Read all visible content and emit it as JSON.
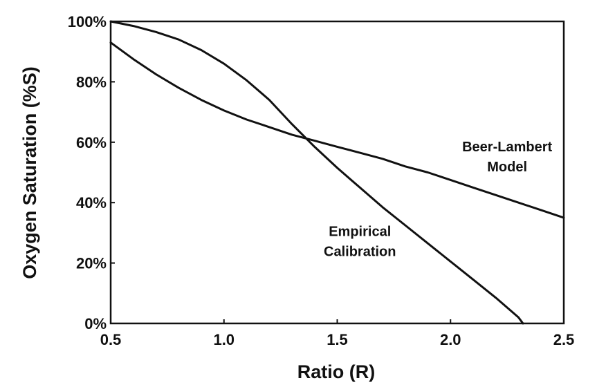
{
  "chart_data": {
    "type": "line",
    "title": "",
    "xlabel": "Ratio (R)",
    "ylabel": "Oxygen Saturation (%S)",
    "xlim": [
      0.5,
      2.5
    ],
    "ylim": [
      0,
      100
    ],
    "x_ticks": [
      {
        "value": 0.5,
        "label": "0.5"
      },
      {
        "value": 1.0,
        "label": "1.0"
      },
      {
        "value": 1.5,
        "label": "1.5"
      },
      {
        "value": 2.0,
        "label": "2.0"
      },
      {
        "value": 2.5,
        "label": "2.5"
      }
    ],
    "y_ticks": [
      {
        "value": 0,
        "label": "0%"
      },
      {
        "value": 20,
        "label": "20%"
      },
      {
        "value": 40,
        "label": "40%"
      },
      {
        "value": 60,
        "label": "60%"
      },
      {
        "value": 80,
        "label": "80%"
      },
      {
        "value": 100,
        "label": "100%"
      }
    ],
    "grid": false,
    "series": [
      {
        "x": [
          0.5,
          0.6,
          0.7,
          0.8,
          0.9,
          1.0,
          1.1,
          1.2,
          1.3,
          1.4,
          1.5,
          1.6,
          1.7,
          1.8,
          1.9,
          2.0,
          2.1,
          2.2,
          2.3,
          2.4,
          2.5
        ],
        "y": [
          93,
          87.5,
          82.5,
          78,
          74,
          70.5,
          67.5,
          65,
          62.5,
          60.5,
          58.5,
          56.5,
          54.5,
          52,
          50,
          47.5,
          45,
          42.5,
          40,
          37.5,
          35
        ]
      },
      {
        "x": [
          0.5,
          0.6,
          0.7,
          0.8,
          0.9,
          1.0,
          1.1,
          1.2,
          1.3,
          1.4,
          1.5,
          1.6,
          1.7,
          1.8,
          1.9,
          2.0,
          2.1,
          2.2,
          2.3,
          2.32
        ],
        "y": [
          100,
          98.5,
          96.5,
          94,
          90.5,
          86,
          80.5,
          74,
          66,
          58.5,
          51.5,
          45,
          38.5,
          32.5,
          26.5,
          20.5,
          14.5,
          8.5,
          2,
          0
        ]
      }
    ],
    "annotations": [
      {
        "id": "beer-lambert",
        "lines": [
          "Beer-Lambert",
          "Model"
        ],
        "x": 2.25,
        "y": 57
      },
      {
        "id": "empirical",
        "lines": [
          "Empirical",
          "Calibration"
        ],
        "x": 1.6,
        "y": 29
      }
    ]
  }
}
